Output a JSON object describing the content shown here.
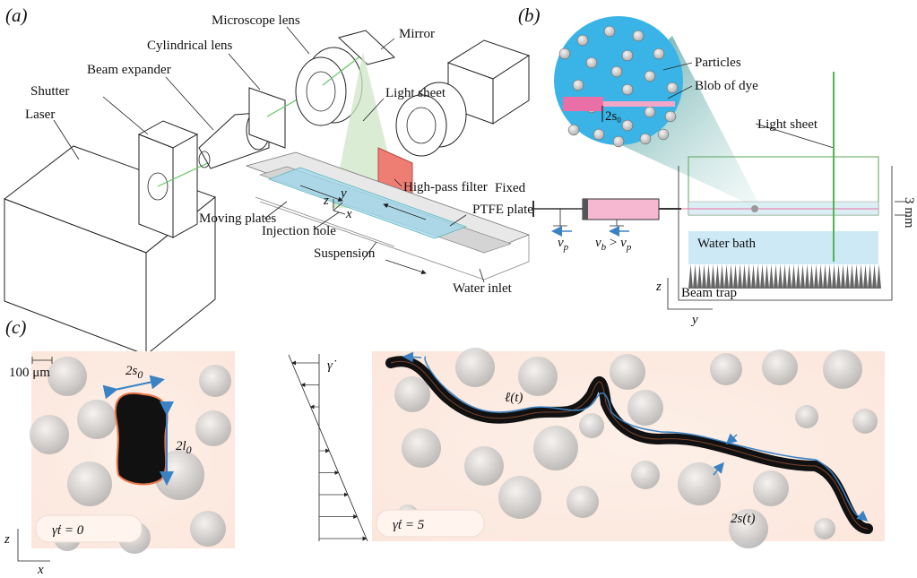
{
  "panel_a": {
    "label": "(a)",
    "laser": "Laser",
    "shutter": "Shutter",
    "beam_expander": "Beam expander",
    "cylindrical_lens": "Cylindrical lens",
    "microscope_lens": "Microscope lens",
    "mirror": "Mirror",
    "light_sheet": "Light sheet",
    "high_pass_filter": "High-pass filter",
    "moving_plates": "Moving plates",
    "fixed_plate": [
      "Fixed",
      "PTFE plate"
    ],
    "injection_hole": "Injection hole",
    "suspension": "Suspension",
    "water_inlet": "Water inlet",
    "axes": [
      "z",
      "y",
      "x"
    ]
  },
  "panel_b": {
    "label": "(b)",
    "particles": "Particles",
    "blob_of_dye": "Blob of dye",
    "blob_width": {
      "base": "2s",
      "sub": "0"
    },
    "light_sheet": "Light sheet",
    "thickness": "3 mm",
    "water_bath": "Water bath",
    "beam_trap": "Beam trap",
    "plunger_velocity": {
      "base": "v",
      "sub": "p"
    },
    "barrel_velocity": {
      "base": "v",
      "sub": "b",
      "relation": " > ",
      "base2": "v",
      "sub2": "p"
    },
    "axes": [
      "z",
      "y"
    ]
  },
  "panel_c": {
    "label": "(c)",
    "scale_bar": "100 μm",
    "initial_width": {
      "base": "2s",
      "sub": "0"
    },
    "initial_length": {
      "base": "2l",
      "sub": "0"
    },
    "strain_initial": "γ̇t = 0",
    "shear_rate": "γ̇",
    "length": "ℓ(t)",
    "width": "2s(t)",
    "strain_final": "γ̇t = 5",
    "axes": [
      "z",
      "x"
    ]
  }
}
